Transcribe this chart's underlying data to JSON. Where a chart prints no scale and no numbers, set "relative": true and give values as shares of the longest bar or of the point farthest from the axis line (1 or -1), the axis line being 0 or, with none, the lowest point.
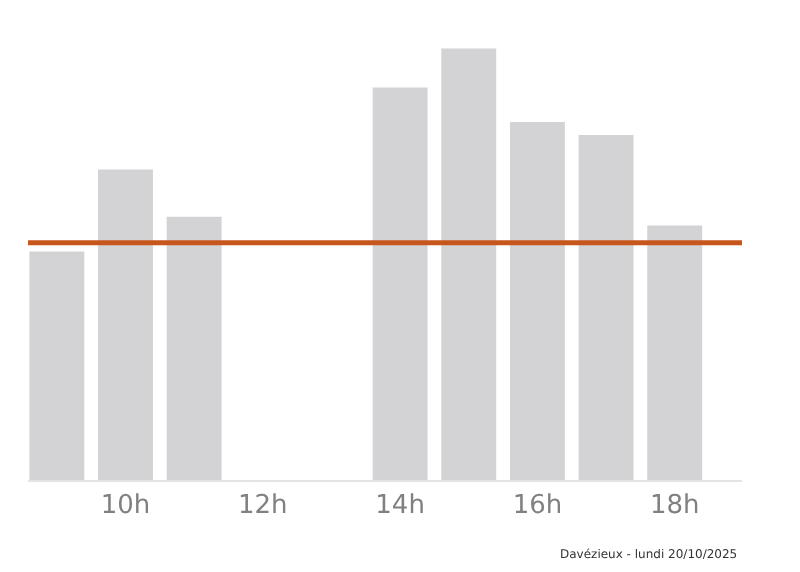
{
  "chart_data": {
    "type": "bar",
    "relative": true,
    "categories": [
      null,
      "10h",
      null,
      "12h",
      null,
      "14h",
      null,
      "16h",
      null,
      "18h"
    ],
    "values": [
      0.53,
      0.72,
      0.61,
      null,
      null,
      0.91,
      1,
      0.83,
      0.8,
      0.59
    ],
    "color": "#d3d3d5",
    "ref_lines": [
      {
        "axis": "y",
        "value": 0.55,
        "color": "#c8561c"
      }
    ],
    "annotations": [
      "Davézieux - lundi 20/10/2025"
    ],
    "grid": false,
    "legend": false
  }
}
